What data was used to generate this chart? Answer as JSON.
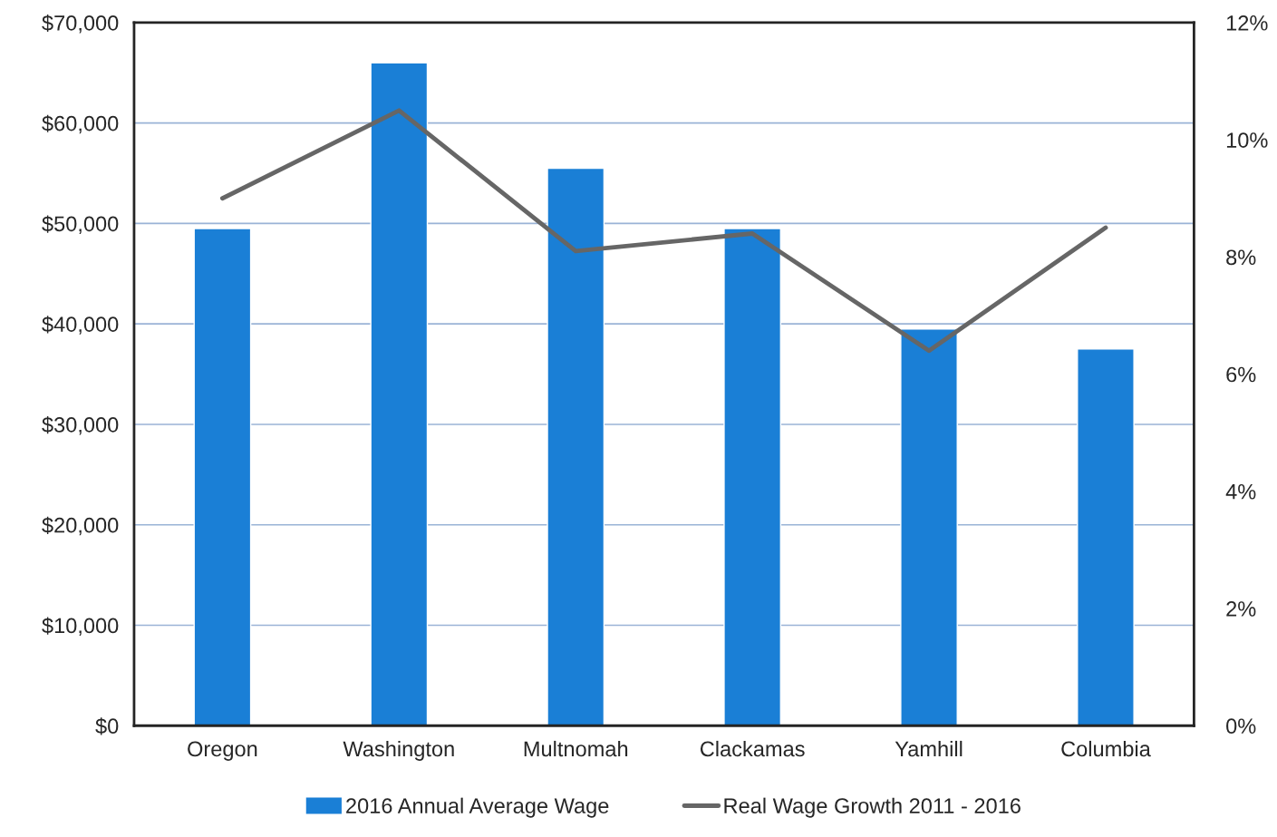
{
  "chart_data": {
    "type": "bar",
    "categories": [
      "Oregon",
      "Washington",
      "Multnomah",
      "Clackamas",
      "Yamhill",
      "Columbia"
    ],
    "series": [
      {
        "name": "2016 Annual Average Wage",
        "color": "#1a7fd6",
        "values": [
          49500,
          66000,
          55500,
          49500,
          39500,
          37500
        ]
      },
      {
        "name": "Real Wage Growth 2011 - 2016",
        "type": "line",
        "axis": "y2",
        "color": "#666666",
        "values": [
          9.0,
          10.5,
          8.1,
          8.4,
          6.4,
          8.5
        ]
      }
    ],
    "ylim": [
      0,
      70000
    ],
    "yticks": [
      {
        "value": 0,
        "label": "$0"
      },
      {
        "value": 10000,
        "label": "$10,000"
      },
      {
        "value": 20000,
        "label": "$20,000"
      },
      {
        "value": 30000,
        "label": "$30,000"
      },
      {
        "value": 40000,
        "label": "$40,000"
      },
      {
        "value": 50000,
        "label": "$50,000"
      },
      {
        "value": 60000,
        "label": "$60,000"
      },
      {
        "value": 70000,
        "label": "$70,000"
      }
    ],
    "y2lim": [
      0,
      12
    ],
    "y2ticks": [
      {
        "value": 0,
        "label": "0%"
      },
      {
        "value": 2,
        "label": "2%"
      },
      {
        "value": 4,
        "label": "4%"
      },
      {
        "value": 6,
        "label": "6%"
      },
      {
        "value": 8,
        "label": "8%"
      },
      {
        "value": 10,
        "label": "10%"
      },
      {
        "value": 12,
        "label": "12%"
      }
    ],
    "grid": "y",
    "legend": "bottom",
    "marker": "none"
  }
}
